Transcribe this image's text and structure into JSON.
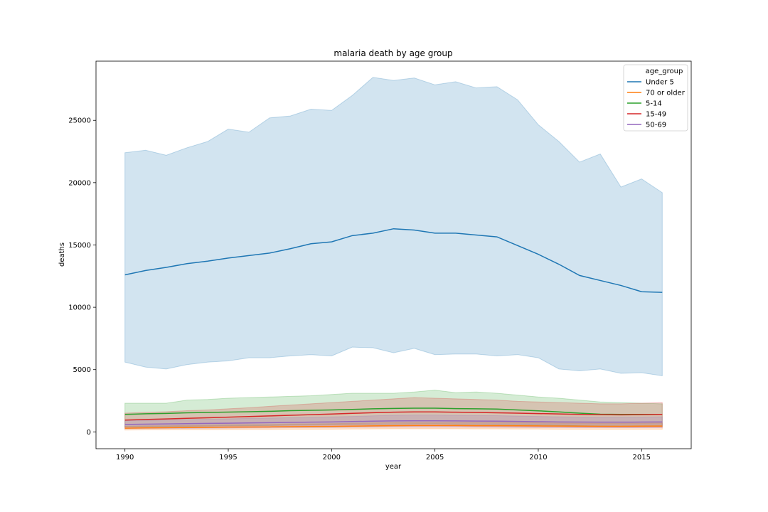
{
  "chart_data": {
    "type": "line",
    "title": "malaria death by age group",
    "xlabel": "year",
    "ylabel": "deaths",
    "xlim": [
      1988.6,
      2017.4
    ],
    "ylim": [
      -1350,
      29750
    ],
    "xticks": [
      1990,
      1995,
      2000,
      2005,
      2010,
      2015
    ],
    "yticks": [
      0,
      5000,
      10000,
      15000,
      20000,
      25000
    ],
    "grid": false,
    "legend": {
      "title": "age_group",
      "placement": "top-right"
    },
    "x": [
      1990,
      1991,
      1992,
      1993,
      1994,
      1995,
      1996,
      1997,
      1998,
      1999,
      2000,
      2001,
      2002,
      2003,
      2004,
      2005,
      2006,
      2007,
      2008,
      2009,
      2010,
      2011,
      2012,
      2013,
      2014,
      2015,
      2016
    ],
    "series": [
      {
        "name": "Under 5",
        "color": "#1f77b4",
        "values": [
          12600,
          12950,
          13200,
          13500,
          13700,
          13950,
          14150,
          14350,
          14700,
          15100,
          15250,
          15750,
          15950,
          16300,
          16200,
          15950,
          15950,
          15800,
          15650,
          14950,
          14250,
          13450,
          12550,
          12150,
          11750,
          11250,
          11200
        ],
        "lower": [
          5600,
          5200,
          5050,
          5400,
          5600,
          5700,
          5950,
          5950,
          6100,
          6200,
          6100,
          6800,
          6750,
          6350,
          6700,
          6200,
          6250,
          6250,
          6100,
          6200,
          5950,
          5050,
          4900,
          5050,
          4700,
          4750,
          4500
        ],
        "upper": [
          22400,
          22600,
          22200,
          22800,
          23300,
          24300,
          24050,
          25200,
          25350,
          25900,
          25800,
          27000,
          28450,
          28200,
          28400,
          27850,
          28100,
          27600,
          27700,
          26650,
          24650,
          23300,
          21650,
          22300,
          19650,
          20300,
          19200
        ]
      },
      {
        "name": "70 or older",
        "color": "#ff7f0e",
        "values": [
          300,
          320,
          330,
          350,
          360,
          380,
          390,
          400,
          420,
          430,
          440,
          460,
          480,
          500,
          510,
          510,
          510,
          500,
          500,
          490,
          480,
          470,
          460,
          450,
          450,
          460,
          470
        ],
        "lower": [
          150,
          160,
          170,
          180,
          180,
          190,
          200,
          200,
          210,
          210,
          220,
          230,
          240,
          250,
          250,
          250,
          250,
          240,
          240,
          230,
          230,
          220,
          220,
          210,
          210,
          220,
          220
        ],
        "upper": [
          450,
          480,
          490,
          520,
          540,
          570,
          580,
          600,
          630,
          640,
          660,
          690,
          720,
          750,
          770,
          770,
          770,
          760,
          760,
          740,
          730,
          710,
          700,
          690,
          690,
          700,
          720
        ]
      },
      {
        "name": "5-14",
        "color": "#2ca02c",
        "values": [
          1400,
          1450,
          1480,
          1530,
          1560,
          1590,
          1620,
          1650,
          1700,
          1730,
          1760,
          1800,
          1850,
          1880,
          1900,
          1900,
          1870,
          1850,
          1830,
          1760,
          1690,
          1600,
          1500,
          1420,
          1400,
          1400,
          1400
        ],
        "lower": [
          400,
          420,
          430,
          450,
          460,
          480,
          500,
          510,
          530,
          540,
          560,
          580,
          600,
          620,
          630,
          640,
          620,
          610,
          600,
          580,
          550,
          520,
          490,
          460,
          450,
          450,
          450
        ],
        "upper": [
          2300,
          2300,
          2300,
          2550,
          2600,
          2700,
          2750,
          2800,
          2850,
          2900,
          3000,
          3100,
          3100,
          3100,
          3200,
          3350,
          3150,
          3200,
          3100,
          2950,
          2800,
          2700,
          2550,
          2400,
          2350,
          2300,
          2250
        ]
      },
      {
        "name": "15-49",
        "color": "#d62728",
        "values": [
          950,
          1000,
          1040,
          1090,
          1130,
          1180,
          1230,
          1280,
          1330,
          1380,
          1430,
          1490,
          1540,
          1580,
          1600,
          1600,
          1580,
          1560,
          1530,
          1500,
          1470,
          1440,
          1400,
          1380,
          1370,
          1380,
          1400
        ],
        "lower": [
          300,
          320,
          330,
          340,
          350,
          360,
          370,
          380,
          400,
          410,
          420,
          440,
          450,
          460,
          470,
          470,
          460,
          450,
          440,
          430,
          420,
          410,
          400,
          390,
          380,
          390,
          390
        ],
        "upper": [
          1500,
          1570,
          1620,
          1700,
          1760,
          1850,
          1940,
          2050,
          2150,
          2250,
          2350,
          2450,
          2550,
          2650,
          2750,
          2700,
          2650,
          2600,
          2550,
          2450,
          2400,
          2350,
          2300,
          2250,
          2250,
          2300,
          2350
        ]
      },
      {
        "name": "50-69",
        "color": "#9467bd",
        "values": [
          600,
          620,
          640,
          660,
          680,
          700,
          720,
          740,
          760,
          780,
          800,
          830,
          860,
          880,
          890,
          890,
          880,
          870,
          860,
          840,
          820,
          800,
          790,
          780,
          780,
          790,
          800
        ],
        "lower": [
          250,
          260,
          270,
          280,
          290,
          300,
          310,
          320,
          330,
          340,
          350,
          360,
          370,
          380,
          380,
          380,
          380,
          370,
          360,
          350,
          340,
          340,
          330,
          330,
          330,
          330,
          340
        ],
        "upper": [
          900,
          930,
          960,
          990,
          1020,
          1050,
          1080,
          1110,
          1140,
          1170,
          1200,
          1240,
          1290,
          1330,
          1350,
          1350,
          1330,
          1310,
          1300,
          1270,
          1240,
          1210,
          1190,
          1180,
          1180,
          1190,
          1210
        ]
      }
    ]
  }
}
